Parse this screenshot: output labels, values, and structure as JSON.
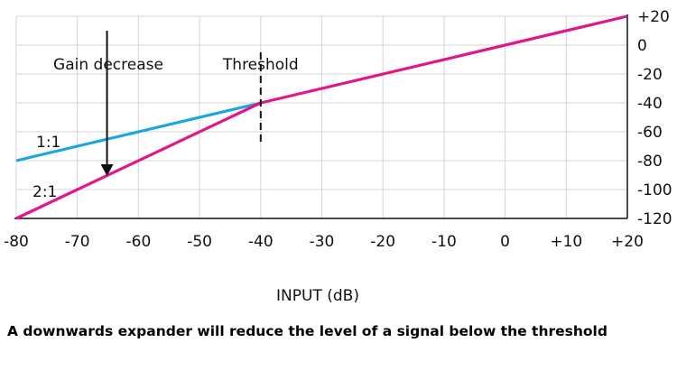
{
  "chart_data": {
    "type": "line",
    "xlabel": "INPUT (dB)",
    "xlim": [
      -80,
      20
    ],
    "ylim": [
      -120,
      20
    ],
    "x_ticks": [
      -80,
      -70,
      -60,
      -50,
      -40,
      -30,
      -20,
      -10,
      0,
      10,
      20
    ],
    "x_tick_labels": [
      "-80",
      "-70",
      "-60",
      "-50",
      "-40",
      "-30",
      "-20",
      "-10",
      "0",
      "+10",
      "+20"
    ],
    "y_ticks": [
      20,
      0,
      -20,
      -40,
      -60,
      -80,
      -100,
      -120
    ],
    "y_tick_labels": [
      "+20",
      "0",
      "-20",
      "-40",
      "-60",
      "-80",
      "-100",
      "-120"
    ],
    "y_axis_side": "right",
    "grid": true,
    "series": [
      {
        "name": "1:1",
        "color": "#1ba6e0",
        "points": [
          [
            -80,
            -80
          ],
          [
            -40,
            -40
          ]
        ]
      },
      {
        "name": "2:1",
        "color": "#e0168a",
        "points": [
          [
            -80,
            -120
          ],
          [
            -40,
            -40
          ],
          [
            20,
            20
          ]
        ]
      }
    ],
    "annotations": {
      "threshold": {
        "label": "Threshold",
        "x": -40,
        "y_range": [
          -70,
          -5
        ]
      },
      "gain_decrease": {
        "label": "Gain decrease",
        "x": -65,
        "arrow_from_y": 10,
        "arrow_to_y": -90
      }
    }
  },
  "caption": "A downwards expander will reduce the level of a signal below the threshold"
}
